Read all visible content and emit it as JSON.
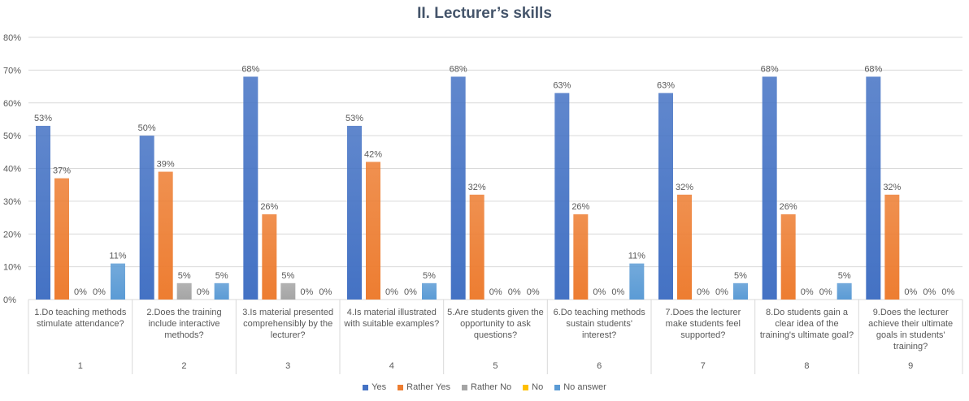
{
  "chart_data": {
    "type": "bar",
    "title": "II. Lecturer’s skills",
    "categories": [
      "1.Do teaching methods stimulate attendance?",
      "2.Does the training include interactive methods?",
      "3.Is material presented comprehensibly by the lecturer?",
      "4.Is material illustrated with suitable examples?",
      "5.Are students given the opportunity to ask questions?",
      "6.Do teaching methods sustain students' interest?",
      "7.Does the lecturer make students feel supported?",
      "8.Do students gain a clear idea of the training's ultimate goal?",
      "9.Does the lecturer achieve their ultimate goals in students' training?"
    ],
    "category_numbers": [
      "1",
      "2",
      "3",
      "4",
      "5",
      "6",
      "7",
      "8",
      "9"
    ],
    "series": [
      {
        "name": "Yes",
        "color": "#4472c4",
        "values": [
          53,
          50,
          68,
          53,
          68,
          63,
          63,
          68,
          68
        ],
        "value_labels": [
          "53%",
          "50%",
          "68%",
          "53%",
          "68%",
          "63%",
          "63%",
          "68%",
          "68%"
        ]
      },
      {
        "name": "Rather Yes",
        "color": "#ed7d31",
        "values": [
          37,
          39,
          26,
          42,
          32,
          26,
          32,
          26,
          32
        ],
        "value_labels": [
          "37%",
          "39%",
          "26%",
          "42%",
          "32%",
          "26%",
          "32%",
          "26%",
          "32%"
        ]
      },
      {
        "name": "Rather No",
        "color": "#a5a5a5",
        "values": [
          0,
          5,
          5,
          0,
          0,
          0,
          0,
          0,
          0
        ],
        "value_labels": [
          "0%",
          "5%",
          "5%",
          "0%",
          "0%",
          "0%",
          "0%",
          "0%",
          "0%"
        ]
      },
      {
        "name": "No",
        "color": "#ffc000",
        "values": [
          0,
          0,
          0,
          0,
          0,
          0,
          0,
          0,
          0
        ],
        "value_labels": [
          "0%",
          "0%",
          "0%",
          "0%",
          "0%",
          "0%",
          "0%",
          "0%",
          "0%"
        ]
      },
      {
        "name": "No answer",
        "color": "#5b9bd5",
        "values": [
          11,
          5,
          0,
          5,
          0,
          11,
          5,
          5,
          0
        ],
        "value_labels": [
          "11%",
          "5%",
          "0%",
          "5%",
          "0%",
          "11%",
          "5%",
          "5%",
          "0%"
        ]
      }
    ],
    "ylim": [
      0,
      80
    ],
    "yticks": [
      {
        "value": 0,
        "label": "0%"
      },
      {
        "value": 10,
        "label": "10%"
      },
      {
        "value": 20,
        "label": "20%"
      },
      {
        "value": 30,
        "label": "30%"
      },
      {
        "value": 40,
        "label": "40%"
      },
      {
        "value": 50,
        "label": "50%"
      },
      {
        "value": 60,
        "label": "60%"
      },
      {
        "value": 70,
        "label": "70%"
      },
      {
        "value": 80,
        "label": "80%"
      }
    ],
    "grid": true,
    "legend": "bottom"
  }
}
